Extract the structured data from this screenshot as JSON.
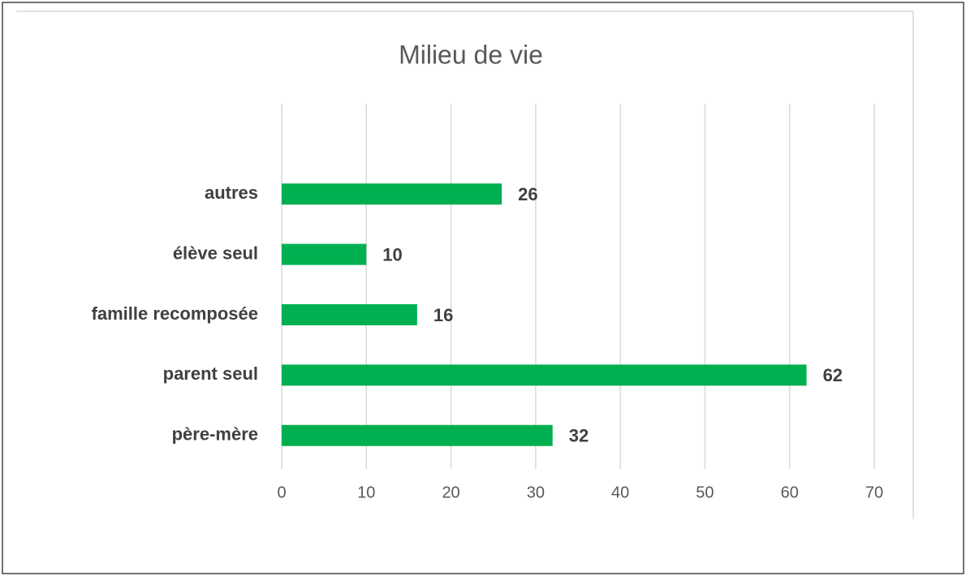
{
  "chart_data": {
    "type": "bar",
    "orientation": "horizontal",
    "title": "Milieu de vie",
    "categories": [
      "père-mère",
      "parent seul",
      "famille recomposée",
      "élève seul",
      "autres"
    ],
    "values": [
      32,
      62,
      16,
      10,
      26
    ],
    "color": "#00b050",
    "xlim": [
      0,
      70
    ],
    "xticks": [
      0,
      10,
      20,
      30,
      40,
      50,
      60,
      70
    ],
    "grid": true
  }
}
